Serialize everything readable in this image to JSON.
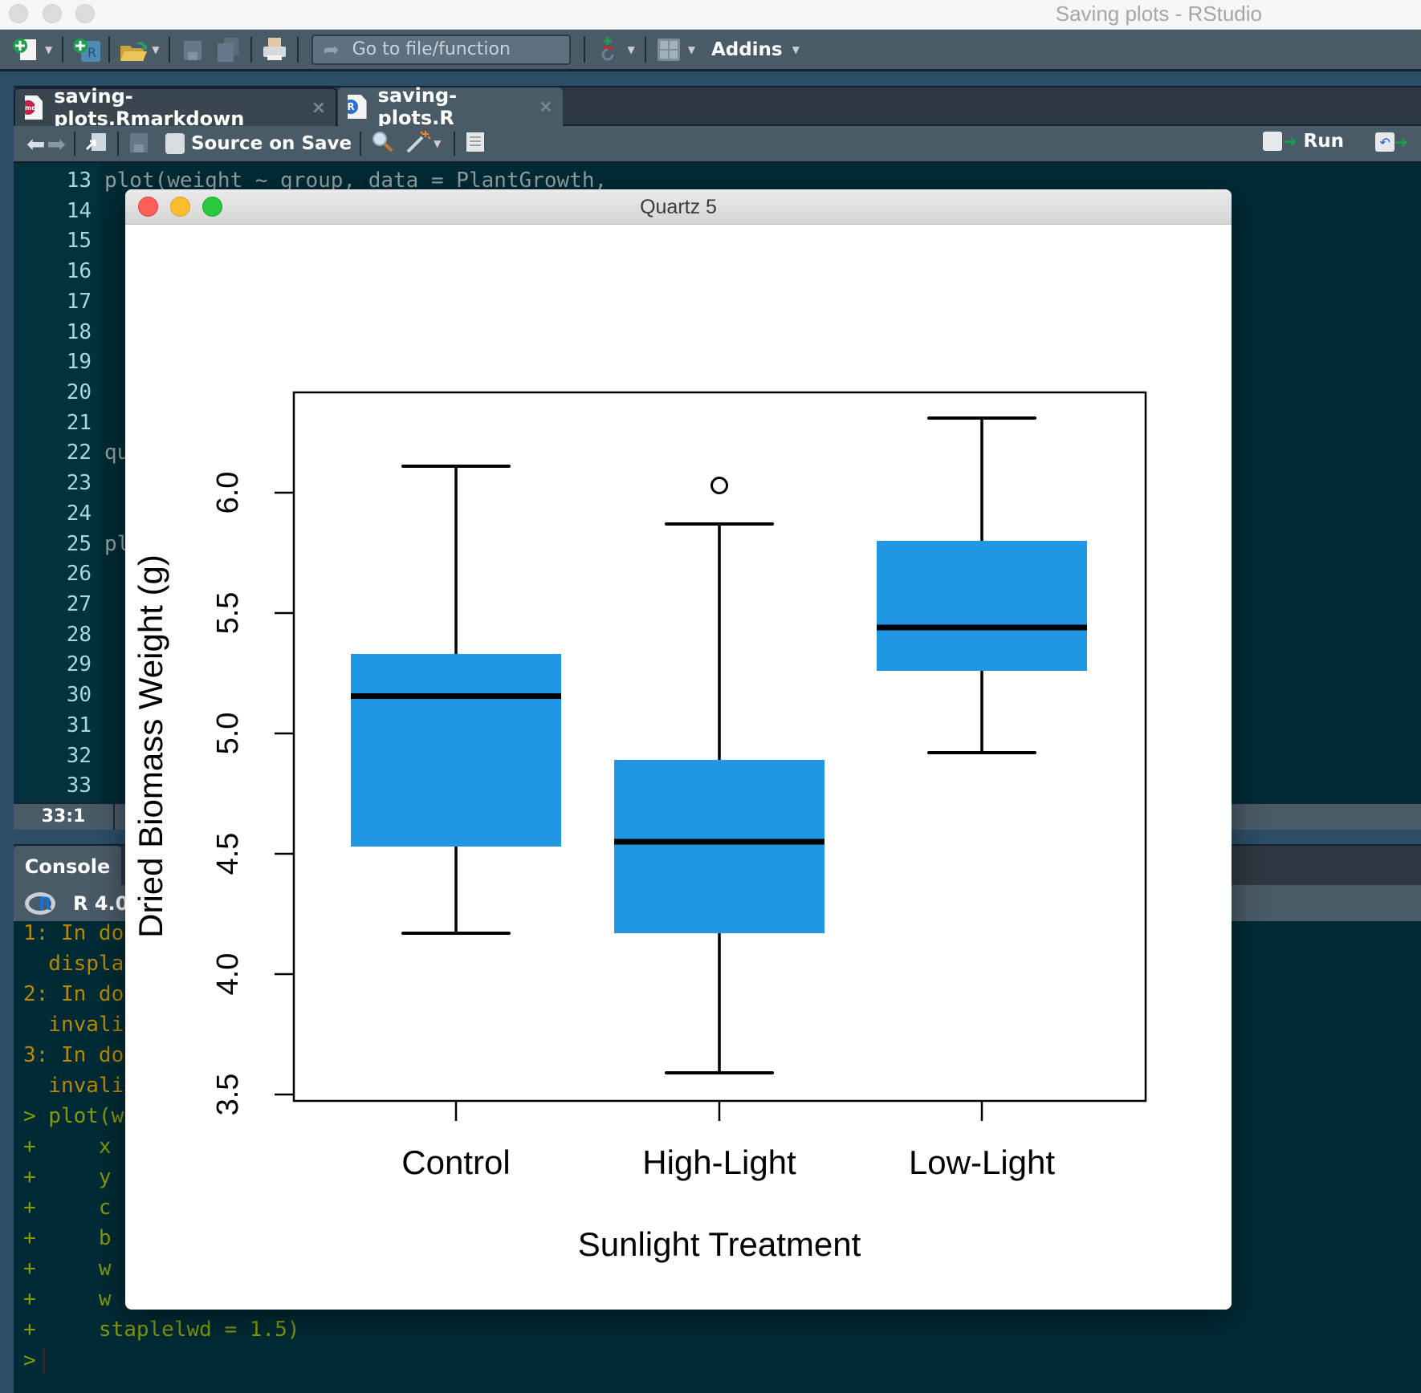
{
  "window": {
    "title": "Saving plots - RStudio"
  },
  "toolbar": {
    "goto_placeholder": "Go to file/function",
    "addins_label": "Addins",
    "icons": [
      "new-file-icon",
      "new-project-icon",
      "open-file-icon",
      "save-icon",
      "save-all-icon",
      "print-icon",
      "version-control-icon",
      "pane-layout-icon"
    ]
  },
  "editor": {
    "tabs": [
      {
        "label": "saving-plots.Rmarkdown",
        "badge": "Rmd",
        "badge_color": "#c0264d",
        "active": false
      },
      {
        "label": "saving-plots.R",
        "badge": "R",
        "badge_color": "#2f6fd3",
        "active": true
      }
    ],
    "source_on_save_label": "Source on Save",
    "run_label": "Run",
    "line_numbers": [
      "13",
      "14",
      "15",
      "16",
      "17",
      "18",
      "19",
      "20",
      "21",
      "22",
      "23",
      "24",
      "25",
      "26",
      "27",
      "28",
      "29",
      "30",
      "31",
      "32",
      "33"
    ],
    "code_lines": [
      {
        "line": 13,
        "text": "plot(weight ~ group, data = PlantGrowth,"
      },
      {
        "line": 22,
        "text": "qu"
      },
      {
        "line": 25,
        "text": "pl"
      }
    ],
    "cursor_position": "33:1"
  },
  "console": {
    "tab_label": "Console",
    "r_version": "R 4.0",
    "lines": [
      {
        "text": "1: In do",
        "type": "warn"
      },
      {
        "text": "  displa",
        "type": "warn"
      },
      {
        "text": "2: In do",
        "type": "warn"
      },
      {
        "text": "  invali",
        "type": "warn"
      },
      {
        "text": "3: In do",
        "type": "warn"
      },
      {
        "text": "  invali",
        "type": "warn"
      },
      {
        "text": "> plot(w",
        "type": "input"
      },
      {
        "text": "+     x",
        "type": "input"
      },
      {
        "text": "+     y",
        "type": "input"
      },
      {
        "text": "+     c",
        "type": "input"
      },
      {
        "text": "+     b",
        "type": "input"
      },
      {
        "text": "+     w",
        "type": "input"
      },
      {
        "text": "+     w",
        "type": "input"
      },
      {
        "text": "+     staplelwd = 1.5)",
        "type": "input"
      },
      {
        "text": ">",
        "type": "input"
      }
    ]
  },
  "quartz": {
    "title": "Quartz 5"
  },
  "colors": {
    "box_fill": "#2196e3",
    "ide_dark": "#002b36",
    "toolbar": "#4a5b68",
    "warn_text": "#b58900",
    "input_text": "#859900"
  },
  "chart_data": {
    "type": "boxplot",
    "title": "",
    "xlabel": "Sunlight Treatment",
    "ylabel": "Dried Biomass Weight (g)",
    "categories": [
      "Control",
      "High-Light",
      "Low-Light"
    ],
    "yticks": [
      3.5,
      4.0,
      4.5,
      5.0,
      5.5,
      6.0
    ],
    "ytick_labels": [
      "3.5",
      "4.0",
      "4.5",
      "5.0",
      "5.5",
      "6.0"
    ],
    "ylim": [
      3.49,
      6.42
    ],
    "grid": false,
    "legend": null,
    "box_color": "#2196e3",
    "series": [
      {
        "name": "Control",
        "whisker_low": 4.17,
        "q1": 4.53,
        "median": 5.155,
        "q3": 5.33,
        "whisker_high": 6.11,
        "outliers": []
      },
      {
        "name": "High-Light",
        "whisker_low": 3.59,
        "q1": 4.17,
        "median": 4.55,
        "q3": 4.89,
        "whisker_high": 5.87,
        "outliers": [
          6.03
        ]
      },
      {
        "name": "Low-Light",
        "whisker_low": 4.92,
        "q1": 5.26,
        "median": 5.44,
        "q3": 5.8,
        "whisker_high": 6.31,
        "outliers": []
      }
    ]
  }
}
